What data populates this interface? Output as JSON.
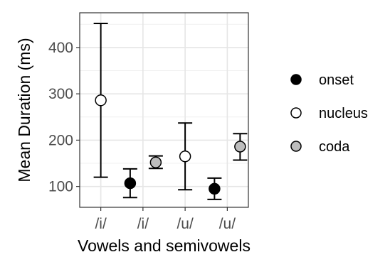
{
  "chart_data": {
    "type": "scatter",
    "subtype": "point-with-errorbars",
    "title": "",
    "xlabel": "Vowels and semivowels",
    "ylabel": "Mean Duration (ms)",
    "categories": [
      "/i/",
      "/i/",
      "/u/",
      "/u/"
    ],
    "ylim": [
      55,
      475
    ],
    "yticks": [
      100,
      200,
      300,
      400
    ],
    "grid": true,
    "legend_position": "right",
    "series": [
      {
        "name": "onset",
        "color": "#000000",
        "points": [
          {
            "category_index": 1,
            "offset": "left",
            "y": 107,
            "ymin": 76,
            "ymax": 138
          },
          {
            "category_index": 3,
            "offset": "left",
            "y": 95,
            "ymin": 72,
            "ymax": 118
          }
        ]
      },
      {
        "name": "nucleus",
        "color": "#ffffff",
        "points": [
          {
            "category_index": 0,
            "offset": "none",
            "y": 286,
            "ymin": 120,
            "ymax": 452
          },
          {
            "category_index": 2,
            "offset": "none",
            "y": 165,
            "ymin": 93,
            "ymax": 237
          }
        ]
      },
      {
        "name": "coda",
        "color": "#bdbdbd",
        "points": [
          {
            "category_index": 1,
            "offset": "right",
            "y": 152,
            "ymin": 139,
            "ymax": 166
          },
          {
            "category_index": 3,
            "offset": "right",
            "y": 186,
            "ymin": 157,
            "ymax": 214
          }
        ]
      }
    ]
  }
}
